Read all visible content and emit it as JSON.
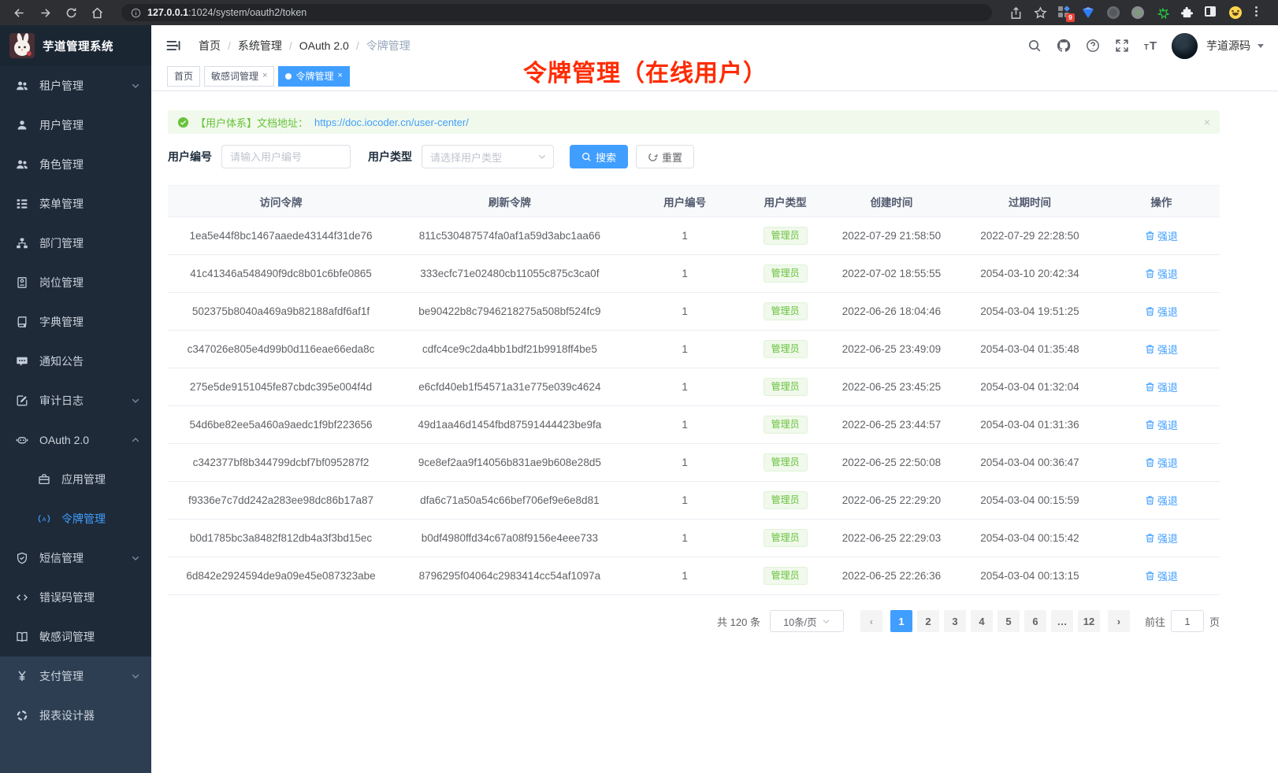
{
  "browser": {
    "url_host": "127.0.0.1",
    "url_path": ":1024/system/oauth2/token",
    "extensions_badge": "9"
  },
  "sidebar": {
    "app_title": "芋道管理系统",
    "items": [
      {
        "label": "租户管理",
        "icon": "users-icon",
        "chevron": "down"
      },
      {
        "label": "用户管理",
        "icon": "user-icon"
      },
      {
        "label": "角色管理",
        "icon": "users-icon"
      },
      {
        "label": "菜单管理",
        "icon": "menu-tree-icon"
      },
      {
        "label": "部门管理",
        "icon": "org-chart-icon"
      },
      {
        "label": "岗位管理",
        "icon": "badge-icon"
      },
      {
        "label": "字典管理",
        "icon": "dictionary-icon"
      },
      {
        "label": "通知公告",
        "icon": "announcement-icon"
      },
      {
        "label": "审计日志",
        "icon": "audit-log-icon",
        "chevron": "down"
      },
      {
        "label": "OAuth 2.0",
        "icon": "robot-icon",
        "chevron": "up"
      },
      {
        "label": "应用管理",
        "icon": "briefcase-icon",
        "sub": true
      },
      {
        "label": "令牌管理",
        "icon": "token-signal-icon",
        "sub": true,
        "active": true
      },
      {
        "label": "短信管理",
        "icon": "shield-icon",
        "chevron": "down"
      },
      {
        "label": "错误码管理",
        "icon": "code-icon"
      },
      {
        "label": "敏感词管理",
        "icon": "open-book-icon"
      },
      {
        "label": "支付管理",
        "icon": "yen-icon",
        "chevron": "down",
        "section2": true
      },
      {
        "label": "报表设计器",
        "icon": "report-icon",
        "section2": true
      }
    ]
  },
  "header": {
    "breadcrumb": [
      "首页",
      "系统管理",
      "OAuth 2.0",
      "令牌管理"
    ],
    "username": "芋道源码"
  },
  "tabs": [
    {
      "label": "首页"
    },
    {
      "label": "敏感词管理",
      "closable": true
    },
    {
      "label": "令牌管理",
      "closable": true,
      "active": true
    }
  ],
  "annotation": "令牌管理（在线用户）",
  "alert": {
    "text": "【用户体系】文档地址：",
    "link": "https://doc.iocoder.cn/user-center/"
  },
  "filters": {
    "user_id_label": "用户编号",
    "user_id_placeholder": "请输入用户编号",
    "user_type_label": "用户类型",
    "user_type_placeholder": "请选择用户类型",
    "search_label": "搜索",
    "reset_label": "重置"
  },
  "table": {
    "columns": [
      "访问令牌",
      "刷新令牌",
      "用户编号",
      "用户类型",
      "创建时间",
      "过期时间",
      "操作"
    ],
    "tag_label": "管理员",
    "action_label": "强退",
    "rows": [
      {
        "access": "1ea5e44f8bc1467aaede43144f31de76",
        "refresh": "811c530487574fa0af1a59d3abc1aa66",
        "user_id": "1",
        "created": "2022-07-29 21:58:50",
        "expires": "2022-07-29 22:28:50"
      },
      {
        "access": "41c41346a548490f9dc8b01c6bfe0865",
        "refresh": "333ecfc71e02480cb11055c875c3ca0f",
        "user_id": "1",
        "created": "2022-07-02 18:55:55",
        "expires": "2054-03-10 20:42:34"
      },
      {
        "access": "502375b8040a469a9b82188afdf6af1f",
        "refresh": "be90422b8c7946218275a508bf524fc9",
        "user_id": "1",
        "created": "2022-06-26 18:04:46",
        "expires": "2054-03-04 19:51:25"
      },
      {
        "access": "c347026e805e4d99b0d116eae66eda8c",
        "refresh": "cdfc4ce9c2da4bb1bdf21b9918ff4be5",
        "user_id": "1",
        "created": "2022-06-25 23:49:09",
        "expires": "2054-03-04 01:35:48"
      },
      {
        "access": "275e5de9151045fe87cbdc395e004f4d",
        "refresh": "e6cfd40eb1f54571a31e775e039c4624",
        "user_id": "1",
        "created": "2022-06-25 23:45:25",
        "expires": "2054-03-04 01:32:04"
      },
      {
        "access": "54d6be82ee5a460a9aedc1f9bf223656",
        "refresh": "49d1aa46d1454fbd87591444423be9fa",
        "user_id": "1",
        "created": "2022-06-25 23:44:57",
        "expires": "2054-03-04 01:31:36"
      },
      {
        "access": "c342377bf8b344799dcbf7bf095287f2",
        "refresh": "9ce8ef2aa9f14056b831ae9b608e28d5",
        "user_id": "1",
        "created": "2022-06-25 22:50:08",
        "expires": "2054-03-04 00:36:47"
      },
      {
        "access": "f9336e7c7dd242a283ee98dc86b17a87",
        "refresh": "dfa6c71a50a54c66bef706ef9e6e8d81",
        "user_id": "1",
        "created": "2022-06-25 22:29:20",
        "expires": "2054-03-04 00:15:59"
      },
      {
        "access": "b0d1785bc3a8482f812db4a3f3bd15ec",
        "refresh": "b0df4980ffd34c67a08f9156e4eee733",
        "user_id": "1",
        "created": "2022-06-25 22:29:03",
        "expires": "2054-03-04 00:15:42"
      },
      {
        "access": "6d842e2924594de9a09e45e087323abe",
        "refresh": "8796295f04064c2983414cc54af1097a",
        "user_id": "1",
        "created": "2022-06-25 22:26:36",
        "expires": "2054-03-04 00:13:15"
      }
    ]
  },
  "pagination": {
    "total": "共 120 条",
    "page_size": "10条/页",
    "pages": [
      "1",
      "2",
      "3",
      "4",
      "5",
      "6",
      "...",
      "12"
    ],
    "active_page": "1",
    "goto_label": "前往",
    "goto_value": "1",
    "page_label": "页"
  },
  "colors": {
    "primary": "#409eff",
    "success": "#67c23a",
    "annotation_red": "#ff2b00",
    "sidebar_bg": "#1e2a38"
  }
}
